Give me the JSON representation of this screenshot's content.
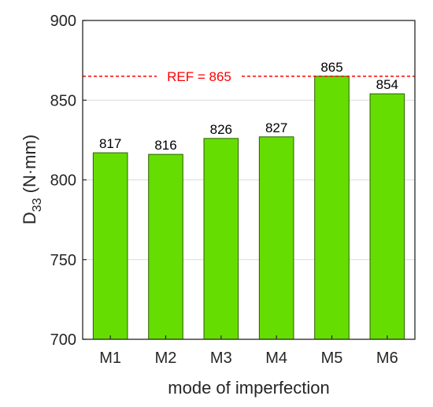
{
  "chart_data": {
    "type": "bar",
    "categories": [
      "M1",
      "M2",
      "M3",
      "M4",
      "M5",
      "M6"
    ],
    "values": [
      817,
      816,
      826,
      827,
      865,
      854
    ],
    "data_labels": [
      "817",
      "816",
      "826",
      "827",
      "865",
      "854"
    ],
    "title": "",
    "xlabel": "mode of imperfection",
    "ylabel": {
      "main": "D",
      "subscript": "33",
      "unit": " (N·mm)"
    },
    "ylim": [
      700,
      900
    ],
    "yticks": [
      700,
      750,
      800,
      850,
      900
    ],
    "grid": "horizontal",
    "bar_color": "#66dd00",
    "bar_edge_color": "#2b5e00",
    "reference_line": {
      "value": 865,
      "label": "REF = 865",
      "color": "#ff0000",
      "style": "dashed"
    }
  }
}
